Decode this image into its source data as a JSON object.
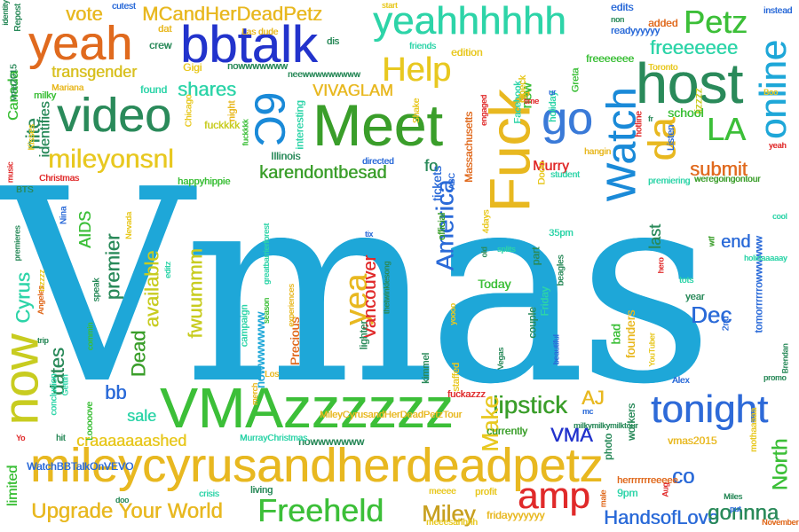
{
  "words": [
    {
      "text": "Vmas",
      "color": "#1ea7d8"
    },
    {
      "text": "mileycyrusandherdeadpetz",
      "color": "#e8b820"
    },
    {
      "text": "VMAzzzzzz",
      "color": "#3cbf38"
    },
    {
      "text": "bbtalk",
      "color": "#2233cc"
    },
    {
      "text": "yeahhhhhh",
      "color": "#2dd4a8"
    },
    {
      "text": "yeah",
      "color": "#e06a1e"
    },
    {
      "text": "video",
      "color": "#2a8a5a"
    },
    {
      "text": "Meet",
      "color": "#3a9e2a"
    },
    {
      "text": "Fuck",
      "color": "#e8b820"
    },
    {
      "text": "Watch",
      "color": "#1a8ad8"
    },
    {
      "text": "host",
      "color": "#2a8a5a"
    },
    {
      "text": "online",
      "color": "#1ea7d8"
    },
    {
      "text": "go",
      "color": "#3a7ad8"
    },
    {
      "text": "now",
      "color": "#c8cc20"
    },
    {
      "text": "tonight",
      "color": "#2e6ad8"
    },
    {
      "text": "amp",
      "color": "#e02a2a"
    },
    {
      "text": "Freeheld",
      "color": "#3cbf38"
    },
    {
      "text": "Upgrade Your World",
      "color": "#e8b820"
    },
    {
      "text": "HandsofLove",
      "color": "#2a6ad8"
    },
    {
      "text": "Miley",
      "color": "#c8a020"
    },
    {
      "text": "gonnna",
      "color": "#2a8a5a"
    },
    {
      "text": "MCandHerDeadPetz",
      "color": "#e8b820"
    },
    {
      "text": "vote",
      "color": "#e8b820"
    },
    {
      "text": "Petz",
      "color": "#3cbf38"
    },
    {
      "text": "freeeeeee",
      "color": "#2dd4a8"
    },
    {
      "text": "Help",
      "color": "#e8c820"
    },
    {
      "text": "transgender",
      "color": "#d8c020"
    },
    {
      "text": "6C",
      "color": "#1a8ad8"
    },
    {
      "text": "mileyonsnl",
      "color": "#e8c820"
    },
    {
      "text": "karendontbesad",
      "color": "#3a9e2a"
    },
    {
      "text": "shares",
      "color": "#2dd4a8"
    },
    {
      "text": "VIVAGLAM",
      "color": "#e8b820"
    },
    {
      "text": "nite",
      "color": "#2a8a5a"
    },
    {
      "text": "identifies",
      "color": "#2a8a5a"
    },
    {
      "text": "da",
      "color": "#e8b820"
    },
    {
      "text": "LA",
      "color": "#3cbf38"
    },
    {
      "text": "submit",
      "color": "#e06a1e"
    },
    {
      "text": "America",
      "color": "#2a6ad8"
    },
    {
      "text": "yea",
      "color": "#e8b820"
    },
    {
      "text": "Vancouver",
      "color": "#e02a2a"
    },
    {
      "text": "available",
      "color": "#c8cc20"
    },
    {
      "text": "fwuummm",
      "color": "#c8cc20"
    },
    {
      "text": "premier",
      "color": "#2a8a5a"
    },
    {
      "text": "AIDS",
      "color": "#3cbf38"
    },
    {
      "text": "Cyrus",
      "color": "#2dd4a8"
    },
    {
      "text": "Dead",
      "color": "#3a9e2a"
    },
    {
      "text": "dates",
      "color": "#2a8a5a"
    },
    {
      "text": "bb",
      "color": "#2a6ad8"
    },
    {
      "text": "sale",
      "color": "#2dd4a8"
    },
    {
      "text": "craaaaaaashed",
      "color": "#e8c820"
    },
    {
      "text": "lipstick",
      "color": "#3a9e2a"
    },
    {
      "text": "Make",
      "color": "#e8c820"
    },
    {
      "text": "AJ",
      "color": "#e8b820"
    },
    {
      "text": "VMA",
      "color": "#2233cc"
    },
    {
      "text": "Dec",
      "color": "#2a6ad8"
    },
    {
      "text": "end",
      "color": "#2a6ad8"
    },
    {
      "text": "North",
      "color": "#3cbf38"
    },
    {
      "text": "co",
      "color": "#2a6ad8"
    },
    {
      "text": "last",
      "color": "#2a8a5a"
    },
    {
      "text": "Murry",
      "color": "#e02a2a"
    },
    {
      "text": "fo",
      "color": "#2a8a5a"
    },
    {
      "text": "Today",
      "color": "#3cbf38"
    },
    {
      "text": "limited",
      "color": "#3cbf38"
    },
    {
      "text": "WatchBBTalkOnVEVO",
      "color": "#2a6ad8"
    },
    {
      "text": "nowwwwwww",
      "color": "#1ea7d8"
    },
    {
      "text": "nowwwwwww",
      "color": "#2a8a5a"
    },
    {
      "text": "Canada",
      "color": "#3cbf38"
    },
    {
      "text": "Precious",
      "color": "#e06a1e"
    },
    {
      "text": "fridayyyyyyy",
      "color": "#e8b820"
    },
    {
      "text": "new",
      "color": "#3cbf38"
    },
    {
      "text": "freeeeeee",
      "color": "#3cbf38"
    },
    {
      "text": "fuckkkk",
      "color": "#c8cc20"
    },
    {
      "text": "Illinois",
      "color": "#2a8a5a"
    },
    {
      "text": "lizzzz",
      "color": "#c8cc20"
    },
    {
      "text": "school",
      "color": "#3cbf38"
    },
    {
      "text": "tomorrrrrrowwwwww",
      "color": "#2a6ad8"
    },
    {
      "text": "weregoingontour",
      "color": "#3a9e2a"
    },
    {
      "text": "premiering",
      "color": "#2dd4a8"
    },
    {
      "text": "MileyCyrusandHerDeadPetzTour",
      "color": "#e8b820"
    },
    {
      "text": "MurrayChristmas",
      "color": "#2dd4a8"
    },
    {
      "text": "nowwwwwww",
      "color": "#2a8a5a"
    },
    {
      "text": "vmas2015",
      "color": "#e8b820"
    },
    {
      "text": "mothaaaaa",
      "color": "#e8c820"
    },
    {
      "text": "herrrrrrreeeee",
      "color": "#e06a1e"
    },
    {
      "text": "meeesahhhh",
      "color": "#e8c820"
    },
    {
      "text": "9pm",
      "color": "#2dd4a8"
    },
    {
      "text": "crisis",
      "color": "#2dd4a8"
    },
    {
      "text": "living",
      "color": "#2a8a5a"
    },
    {
      "text": "profit",
      "color": "#e8c820"
    },
    {
      "text": "meeee",
      "color": "#e8c820"
    },
    {
      "text": "currently",
      "color": "#3a9e2a"
    },
    {
      "text": "photo",
      "color": "#2a8a5a"
    },
    {
      "text": "workers",
      "color": "#2a8a5a"
    },
    {
      "text": "founders",
      "color": "#e8b820"
    },
    {
      "text": "bad",
      "color": "#3cbf38"
    },
    {
      "text": "part",
      "color": "#2a8a5a"
    },
    {
      "text": "Friday",
      "color": "#2dd4a8"
    },
    {
      "text": "couple",
      "color": "#2a8a5a"
    },
    {
      "text": "lighter",
      "color": "#2a8a5a"
    },
    {
      "text": "kimmel",
      "color": "#2a8a5a"
    },
    {
      "text": "staffed",
      "color": "#e8c820"
    },
    {
      "text": "tickets",
      "color": "#2a6ad8"
    },
    {
      "text": "official",
      "color": "#3a9e2a"
    },
    {
      "text": "Massachusetts",
      "color": "#e06a1e"
    },
    {
      "text": "Facebook",
      "color": "#2dd4a8"
    },
    {
      "text": "holiday",
      "color": "#2dd4a8"
    },
    {
      "text": "edition",
      "color": "#e8c820"
    },
    {
      "text": "Check",
      "color": "#e8c820"
    },
    {
      "text": "friends",
      "color": "#2dd4a8"
    },
    {
      "text": "added",
      "color": "#e06a1e"
    },
    {
      "text": "edits",
      "color": "#2a6ad8"
    },
    {
      "text": "instead",
      "color": "#2a6ad8"
    },
    {
      "text": "cutest",
      "color": "#2a6ad8"
    },
    {
      "text": "Repost",
      "color": "#2a8a5a"
    },
    {
      "text": "dat",
      "color": "#e8b820"
    },
    {
      "text": "crew",
      "color": "#2a8a5a"
    },
    {
      "text": "Las dude",
      "color": "#e8b820"
    },
    {
      "text": "Gigi",
      "color": "#e8c820"
    },
    {
      "text": "dis",
      "color": "#2a8a5a"
    },
    {
      "text": "found",
      "color": "#2dd4a8"
    },
    {
      "text": "Mariana",
      "color": "#e8b820"
    },
    {
      "text": "milky",
      "color": "#3cbf38"
    },
    {
      "text": "vma2015",
      "color": "#2a8a5a"
    },
    {
      "text": "Christmas",
      "color": "#e02a2a"
    },
    {
      "text": "BTS",
      "color": "#2a8a5a"
    },
    {
      "text": "music",
      "color": "#e02a2a"
    },
    {
      "text": "identity",
      "color": "#2a8a5a"
    },
    {
      "text": "Kisses",
      "color": "#e8c820"
    },
    {
      "text": "Chicago",
      "color": "#e8c820"
    },
    {
      "text": "night",
      "color": "#e8b820"
    },
    {
      "text": "interesting",
      "color": "#2dd4a8"
    },
    {
      "text": "happyhippie",
      "color": "#3cbf38"
    },
    {
      "text": "directed",
      "color": "#2a6ad8"
    },
    {
      "text": "Shake",
      "color": "#e8c820"
    },
    {
      "text": "engaged",
      "color": "#e02a2a"
    },
    {
      "text": "student",
      "color": "#2dd4a8"
    },
    {
      "text": "hangin",
      "color": "#e8b820"
    },
    {
      "text": "hotline",
      "color": "#e02a2a"
    },
    {
      "text": "Listen",
      "color": "#2a6ad8"
    },
    {
      "text": "Greta",
      "color": "#3cbf38"
    },
    {
      "text": "Toronto",
      "color": "#e8c820"
    },
    {
      "text": "readyyyyyy",
      "color": "#2a6ad8"
    },
    {
      "text": "start",
      "color": "#e8c820"
    },
    {
      "text": "neewwwwwwwww",
      "color": "#2a8a5a"
    },
    {
      "text": "Los",
      "color": "#e8b820"
    },
    {
      "text": "merch",
      "color": "#e8b820"
    },
    {
      "text": "fuckazzz",
      "color": "#e02a2a"
    },
    {
      "text": "milkymilkymilktour",
      "color": "#2a8a5a"
    },
    {
      "text": "Alex",
      "color": "#2a6ad8"
    },
    {
      "text": "YouTuber",
      "color": "#e8c820"
    },
    {
      "text": "promo",
      "color": "#2a8a5a"
    },
    {
      "text": "Brendan",
      "color": "#2a8a5a"
    },
    {
      "text": "2nd",
      "color": "#2a6ad8"
    },
    {
      "text": "year",
      "color": "#2a8a5a"
    },
    {
      "text": "tots",
      "color": "#2dd4a8"
    },
    {
      "text": "hero",
      "color": "#e02a2a"
    },
    {
      "text": "holidaaaaay",
      "color": "#2dd4a8"
    },
    {
      "text": "wtf",
      "color": "#3a9e2a"
    },
    {
      "text": "beagles",
      "color": "#2a8a5a"
    },
    {
      "text": "35pm",
      "color": "#2dd4a8"
    },
    {
      "text": "4days",
      "color": "#e8c820"
    },
    {
      "text": "splits",
      "color": "#2dd4a8"
    },
    {
      "text": "Vegas",
      "color": "#2a8a5a"
    },
    {
      "text": "yoooo",
      "color": "#e8c820"
    },
    {
      "text": "tix",
      "color": "#2a6ad8"
    },
    {
      "text": "thetwinklesong",
      "color": "#2a8a5a"
    },
    {
      "text": "greatbarrierforest",
      "color": "#2dd4a8"
    },
    {
      "text": "season",
      "color": "#3cbf38"
    },
    {
      "text": "campaign",
      "color": "#2dd4a8"
    },
    {
      "text": "experiences",
      "color": "#e8b820"
    },
    {
      "text": "commin",
      "color": "#3cbf38"
    },
    {
      "text": "speak",
      "color": "#2a8a5a"
    },
    {
      "text": "Angeles",
      "color": "#e06a1e"
    },
    {
      "text": "izzzzz",
      "color": "#e8c820"
    },
    {
      "text": "Nevada",
      "color": "#e8c820"
    },
    {
      "text": "Nina",
      "color": "#2a6ad8"
    },
    {
      "text": "editz",
      "color": "#2dd4a8"
    },
    {
      "text": "trip",
      "color": "#2a8a5a"
    },
    {
      "text": "Gettin",
      "color": "#2dd4a8"
    },
    {
      "text": "conclusion",
      "color": "#2dd4a8"
    },
    {
      "text": "Looooove",
      "color": "#3cbf38"
    },
    {
      "text": "hit",
      "color": "#2a8a5a"
    },
    {
      "text": "Yo",
      "color": "#e02a2a"
    },
    {
      "text": "Miles",
      "color": "#2a8a5a"
    },
    {
      "text": "put",
      "color": "#2a6ad8"
    },
    {
      "text": "November",
      "color": "#e06a1e"
    },
    {
      "text": "male",
      "color": "#e06a1e"
    },
    {
      "text": "Aug",
      "color": "#e02a2a"
    },
    {
      "text": "mc",
      "color": "#2a6ad8"
    },
    {
      "text": "beautiful",
      "color": "#2a6ad8"
    },
    {
      "text": "non",
      "color": "#2a8a5a"
    },
    {
      "text": "ur",
      "color": "#2a6ad8"
    },
    {
      "text": "time",
      "color": "#e02a2a"
    },
    {
      "text": "fr",
      "color": "#2a8a5a"
    },
    {
      "text": "ABC",
      "color": "#2a6ad8"
    },
    {
      "text": "fuckkkk",
      "color": "#3cbf38"
    },
    {
      "text": "premieres",
      "color": "#2a8a5a"
    },
    {
      "text": "Dooo",
      "color": "#e8c820"
    },
    {
      "text": "old",
      "color": "#2a8a5a"
    },
    {
      "text": "Boo",
      "color": "#e8c820"
    },
    {
      "text": "yeah",
      "color": "#e02a2a"
    },
    {
      "text": "cool",
      "color": "#2dd4a8"
    },
    {
      "text": "doo",
      "color": "#2a8a5a"
    }
  ]
}
